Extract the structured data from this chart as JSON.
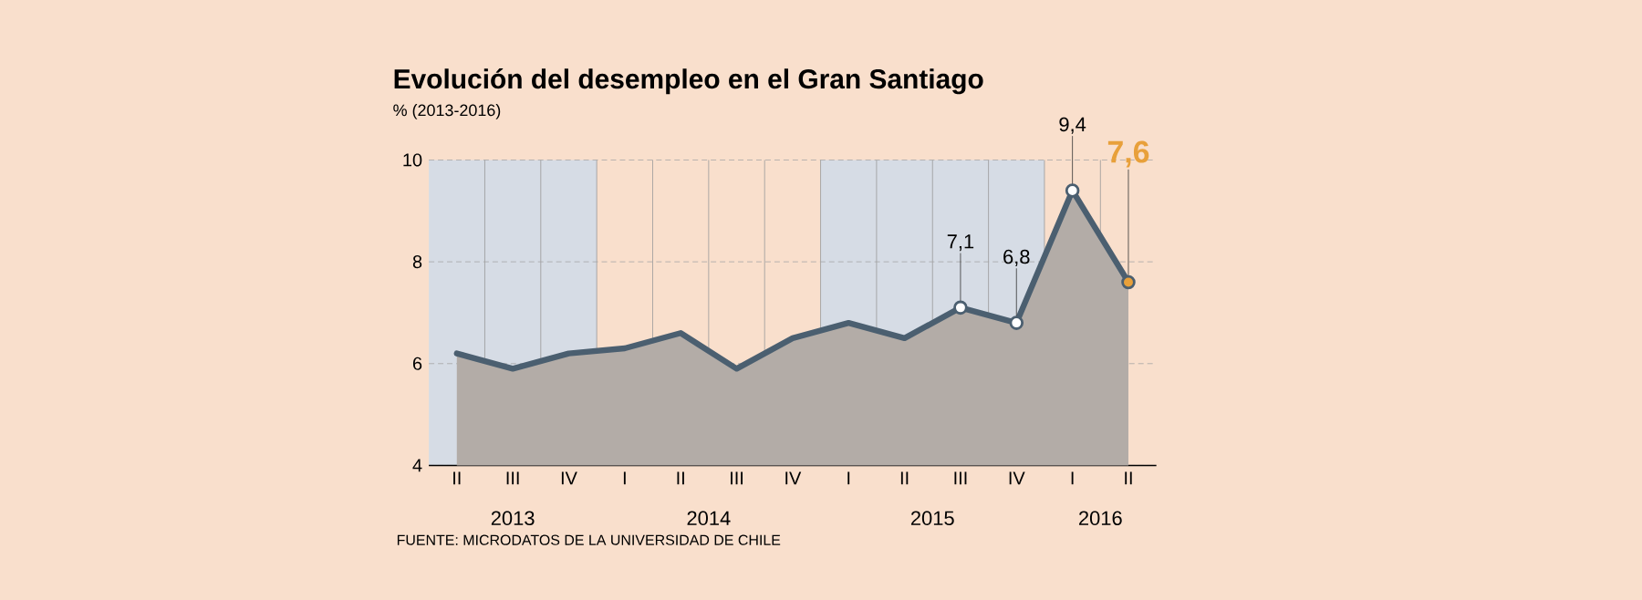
{
  "chart_data": {
    "type": "area",
    "title": "Evolución del desempleo en el Gran Santiago",
    "subtitle": "% (2013-2016)",
    "categories": [
      "II",
      "III",
      "IV",
      "I",
      "II",
      "III",
      "IV",
      "I",
      "II",
      "III",
      "IV",
      "I",
      "II"
    ],
    "series": [
      {
        "color": "#4b5f70",
        "values": [
          6.2,
          5.9,
          6.2,
          6.3,
          6.6,
          5.9,
          6.5,
          6.8,
          6.5,
          7.1,
          6.8,
          9.4,
          7.6
        ],
        "value_labels": [
          null,
          null,
          null,
          null,
          null,
          null,
          null,
          null,
          null,
          "7,1",
          "6,8",
          "9,4",
          "7,6"
        ],
        "colors": [
          "#ffffff",
          "#ffffff",
          "#ffffff",
          "#ffffff",
          "#ffffff",
          "#ffffff",
          "#ffffff",
          "#ffffff",
          "#ffffff",
          "#ffffff",
          "#ffffff",
          "#ffffff",
          "#e8a03a"
        ]
      }
    ],
    "ylim": [
      4,
      10
    ],
    "yticks": [
      4,
      6,
      8,
      10
    ],
    "grid": true,
    "annotations": [
      "2013",
      "2014",
      "2015",
      "2016",
      "FUENTE: MICRODATOS DE LA UNIVERSIDAD DE CHILE"
    ]
  }
}
